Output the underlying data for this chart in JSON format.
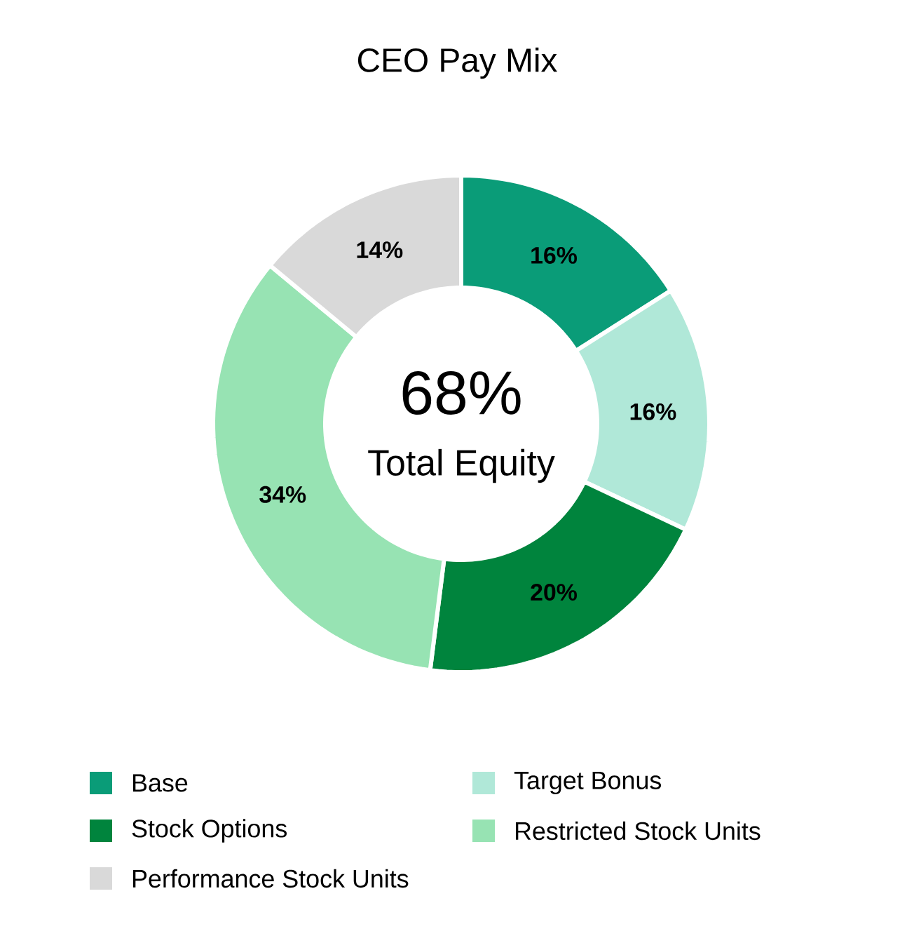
{
  "chart_data": {
    "type": "donut",
    "title": "CEO Pay Mix",
    "categories": [
      "Base",
      "Target Bonus",
      "Stock Options",
      "Restricted Stock Units",
      "Performance Stock Units"
    ],
    "values": [
      16,
      16,
      20,
      34,
      14
    ],
    "value_labels": [
      "16%",
      "16%",
      "20%",
      "34%",
      "14%"
    ],
    "colors": [
      "#0a9c78",
      "#b0e8d8",
      "#00843d",
      "#97e3b3",
      "#d9d9d9"
    ],
    "annotations": [
      "68%",
      "Total Equity"
    ],
    "legend": "bottom"
  }
}
